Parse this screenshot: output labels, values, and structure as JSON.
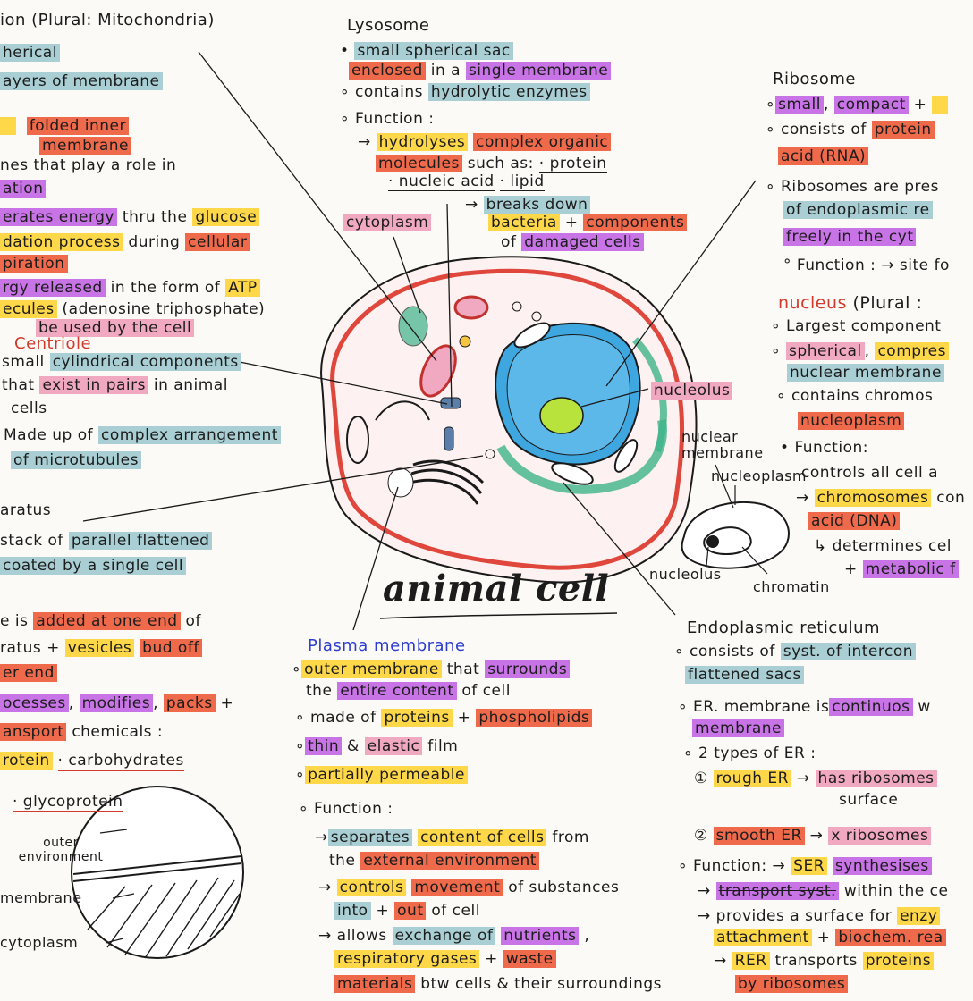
{
  "title": "animal cell",
  "mito": {
    "heading": "ion (Plural: Mitochondria)",
    "l1": "herical",
    "l2": "ayers of membrane",
    "l3a": "folded inner",
    "l3b": "membrane",
    "l4": "nes that play a role in",
    "l5": "ation",
    "l6a": "erates energy",
    "l6b": "thru the",
    "l6c": "glucose",
    "l7a": "dation process",
    "l7b": "during",
    "l7c": "cellular",
    "l8": "piration",
    "l9a": "rgy released",
    "l9b": "in the form of",
    "l9c": "ATP",
    "l10a": "ecules",
    "l10b": "(adenosine triphosphate)",
    "l11": "be used by the cell"
  },
  "centriole": {
    "heading": "Centriole",
    "l1a": "small",
    "l1b": "cylindrical components",
    "l2a": "that",
    "l2b": "exist in pairs",
    "l2c": "in animal",
    "l3": "cells",
    "l4a": "Made up of",
    "l4b": "complex arrangement",
    "l5": "of microtubules"
  },
  "golgi": {
    "heading": "aratus",
    "l1a": "stack of",
    "l1b": "parallel flattened",
    "l2": "coated by a single cell",
    "l3a": "e is",
    "l3b": "added at one end",
    "l3c": "of",
    "l4a": "ratus +",
    "l4b": "vesicles",
    "l4c": "bud off",
    "l5": "er end",
    "l6a": "ocesses",
    "l6b": "modifies",
    "l6c": "packs",
    "l7a": "ansport",
    "l7b": "chemicals :",
    "l8a": "rotein",
    "l8b": "· carbohydrates",
    "l9": "· glycoprotein"
  },
  "diagram": {
    "outer": "outer environment",
    "membrane": "membrane",
    "cytoplasm": "cytoplasm"
  },
  "lysosome": {
    "heading": "Lysosome",
    "l1": "small spherical sac",
    "l2a": "enclosed",
    "l2b": "in a",
    "l2c": "single membrane",
    "l3a": "contains",
    "l3b": "hydrolytic enzymes",
    "l4": "Function :",
    "l5a": "hydrolyses",
    "l5b": "complex organic",
    "l6a": "molecules",
    "l6b": "such as:",
    "l6c": "· protein",
    "l7a": "· nucleic acid",
    "l7b": "· lipid",
    "l8": "breaks down",
    "l9a": "bacteria",
    "l9b": "components",
    "l10a": "of",
    "l10b": "damaged cells"
  },
  "labels": {
    "cytoplasm": "cytoplasm",
    "nucleolus": "nucleolus",
    "nuclear_membrane_1": "nuclear",
    "nuclear_membrane_2": "membrane",
    "nucleoplasm": "nucleoplasm",
    "nucleolus2": "nucleolus",
    "chromatin": "chromatin"
  },
  "ribosome": {
    "heading": "Ribosome",
    "l1a": "small",
    "l1b": "compact",
    "l2a": "consists of",
    "l2b": "protein",
    "l3": "acid (RNA)",
    "l4": "Ribosomes are pres",
    "l5": "of endoplasmic re",
    "l6": "freely in the cyt",
    "l7": "Function : → site fo"
  },
  "nucleus": {
    "heading": "nucleus",
    "headingb": "(Plural :",
    "l1": "Largest component",
    "l2a": "spherical",
    "l2b": "compres",
    "l3": "nuclear membrane",
    "l4": "contains chromos",
    "l5": "nucleoplasm",
    "l6": "Function:",
    "l7": "controls all cell a",
    "l8a": "chromosomes",
    "l8b": "con",
    "l9": "acid (DNA)",
    "l10": "determines cel",
    "l11": "metabolic f"
  },
  "plasma": {
    "heading": "Plasma membrane",
    "l1a": "outer membrane",
    "l1b": "that",
    "l1c": "surrounds",
    "l2a": "the",
    "l2b": "entire content",
    "l2c": "of cell",
    "l3a": "made of",
    "l3b": "proteins",
    "l3c": "phospholipids",
    "l4a": "thin",
    "l4b": "elastic",
    "l4c": "film",
    "l5": "partially permeable",
    "l6": "Function :",
    "l7a": "separates",
    "l7b": "content of cells",
    "l7c": "from",
    "l8a": "the",
    "l8b": "external environment",
    "l9a": "controls",
    "l9b": "movement",
    "l9c": "of substances",
    "l10a": "into",
    "l10b": "out",
    "l10c": "of cell",
    "l11a": "allows",
    "l11b": "exchange of",
    "l11c": "nutrients",
    "l12a": "respiratory gases",
    "l12b": "waste",
    "l13a": "materials",
    "l13b": "btw cells & their surroundings"
  },
  "er": {
    "heading": "Endoplasmic reticulum",
    "l1a": "consists of",
    "l1b": "syst. of intercon",
    "l2": "flattened sacs",
    "l3a": "ER. membrane is",
    "l3b": "continuos",
    "l3c": "w",
    "l4": "membrane",
    "l5": "2 types of ER :",
    "l6a": "rough ER",
    "l6b": "has ribosomes",
    "l7": "surface",
    "l8a": "smooth ER",
    "l8b": "x ribosomes",
    "l9a": "Function:",
    "l9b": "SER",
    "l9c": "synthesises",
    "l10a": "transport syst.",
    "l10b": "within the ce",
    "l11a": "provides a surface for",
    "l11b": "enzy",
    "l12a": "attachment",
    "l12b": "biochem. rea",
    "l13a": "RER",
    "l13b": "transports",
    "l13c": "proteins",
    "l14": "by ribosomes"
  }
}
